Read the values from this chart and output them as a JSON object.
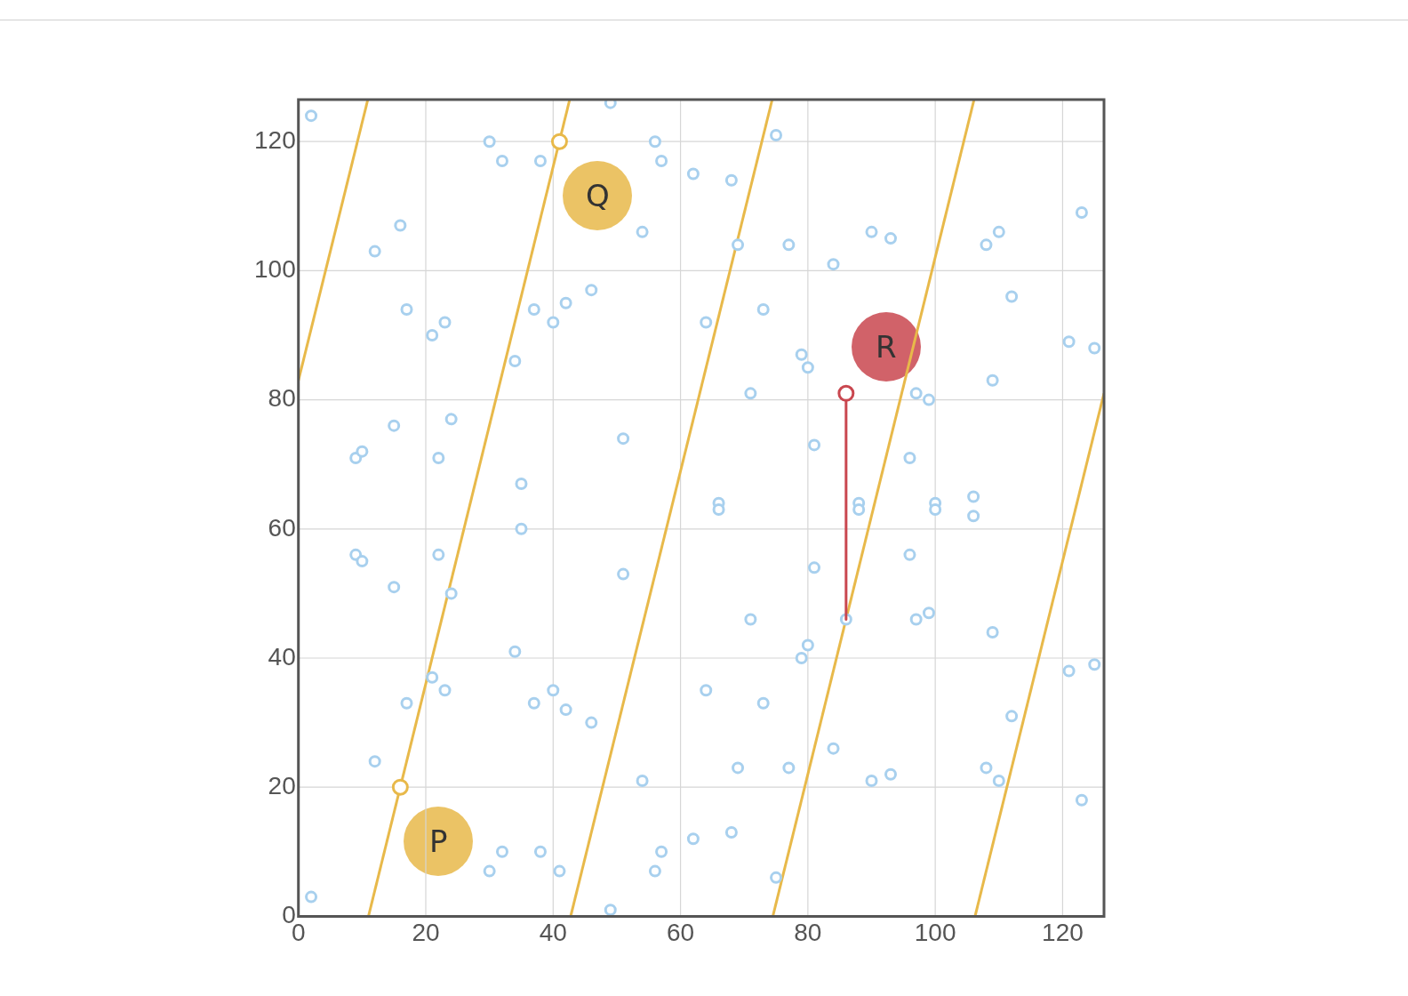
{
  "chart_data": {
    "type": "scatter",
    "xlim": [
      0,
      126.5
    ],
    "ylim": [
      0,
      126.5
    ],
    "xticks": [
      0,
      20,
      40,
      60,
      80,
      100,
      120
    ],
    "yticks": [
      0,
      20,
      40,
      60,
      80,
      100,
      120
    ],
    "grid": true,
    "legend": false,
    "series": [
      {
        "type": "line",
        "color": "#e8b94a",
        "marker": "none",
        "x": [
          0,
          10.9
        ],
        "values": [
          83,
          126.5
        ]
      },
      {
        "type": "line",
        "color": "#e8b94a",
        "marker": "none",
        "x": [
          11,
          42.6
        ],
        "values": [
          0,
          126.5
        ]
      },
      {
        "type": "line",
        "color": "#e8b94a",
        "marker": "none",
        "x": [
          42.75,
          74.4
        ],
        "values": [
          0,
          126.5
        ]
      },
      {
        "type": "line",
        "color": "#e8b94a",
        "marker": "none",
        "x": [
          74.5,
          106.1
        ],
        "values": [
          0,
          126.5
        ]
      },
      {
        "type": "line",
        "color": "#e8b94a",
        "marker": "none",
        "x": [
          106.25,
          126.5
        ],
        "values": [
          0,
          81
        ]
      },
      {
        "type": "scatter",
        "color": "#a8d0ee",
        "marker": "circle",
        "x": [
          2,
          2,
          12,
          12,
          16,
          17,
          17,
          21,
          21,
          23,
          23,
          9,
          9,
          10,
          10,
          15,
          15,
          24,
          24,
          22,
          22,
          30,
          30,
          32,
          32,
          38,
          38,
          41,
          34,
          34,
          37,
          37,
          40,
          40,
          42,
          42,
          46,
          46,
          35,
          35,
          49,
          49,
          51,
          51,
          56,
          56,
          57,
          57,
          54,
          54,
          62,
          62,
          68,
          68,
          64,
          64,
          69,
          69,
          66,
          66,
          75,
          75,
          73,
          73,
          71,
          71,
          77,
          77,
          79,
          79,
          80,
          80,
          81,
          81,
          84,
          84,
          86,
          88,
          88,
          90,
          90,
          93,
          93,
          97,
          97,
          99,
          99,
          96,
          96,
          100,
          100,
          106,
          106,
          108,
          108,
          110,
          110,
          112,
          112,
          109,
          109,
          121,
          121,
          123,
          123,
          125,
          125
        ],
        "values": [
          124,
          3,
          103,
          24,
          107,
          94,
          33,
          90,
          37,
          92,
          35,
          71,
          56,
          72,
          55,
          76,
          51,
          77,
          50,
          71,
          56,
          120,
          7,
          117,
          10,
          117,
          10,
          7,
          86,
          41,
          94,
          33,
          92,
          35,
          95,
          32,
          97,
          30,
          67,
          60,
          126,
          1,
          74,
          53,
          120,
          7,
          117,
          10,
          106,
          21,
          115,
          12,
          114,
          13,
          92,
          35,
          104,
          23,
          64,
          63,
          121,
          6,
          94,
          33,
          81,
          46,
          104,
          23,
          87,
          40,
          85,
          42,
          73,
          54,
          101,
          26,
          46,
          64,
          63,
          106,
          21,
          105,
          22,
          81,
          46,
          80,
          47,
          71,
          56,
          64,
          63,
          65,
          62,
          104,
          23,
          106,
          21,
          96,
          31,
          83,
          44,
          89,
          38,
          109,
          18,
          88,
          39
        ]
      },
      {
        "type": "line",
        "color": "#c9474f",
        "marker": "none",
        "x": [
          86,
          86
        ],
        "values": [
          81,
          46
        ]
      },
      {
        "type": "scatter",
        "color": "#e8b94a",
        "marker": "circle",
        "x": [
          16,
          41
        ],
        "values": [
          20,
          120
        ]
      },
      {
        "type": "scatter",
        "color": "#c9474f",
        "marker": "circle",
        "x": [
          86
        ],
        "values": [
          81
        ]
      }
    ],
    "annotations": [
      {
        "text": "P",
        "x": 16,
        "y": 20
      },
      {
        "text": "Q",
        "x": 41,
        "y": 120
      },
      {
        "text": "R",
        "x": 86,
        "y": 81
      }
    ]
  }
}
